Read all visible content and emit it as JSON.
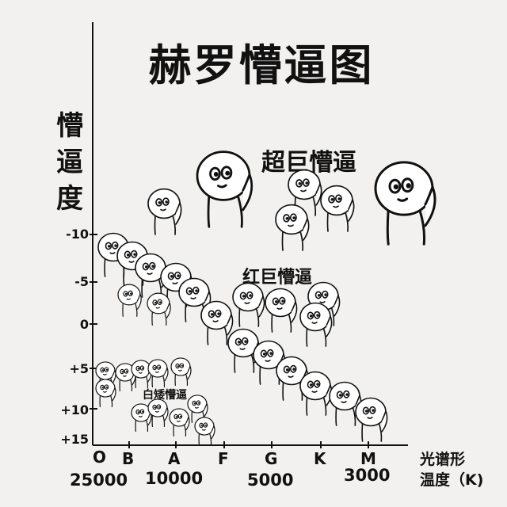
{
  "title": "赫罗懵逼图",
  "y_axis": {
    "label": "懵逼度",
    "ticks": [
      "-10",
      "-5",
      "0",
      "+5",
      "+10",
      "+15"
    ]
  },
  "x_axis": {
    "classes": [
      "O",
      "B",
      "A",
      "F",
      "G",
      "K",
      "M"
    ],
    "temperatures": [
      "25000",
      "10000",
      "5000",
      "3000"
    ],
    "unit_line1": "光谱形",
    "unit_line2": "温度（K)"
  },
  "groups": {
    "supergiants": "超巨懵逼",
    "red_giants": "红巨懵逼",
    "white_dwarfs": "白矮懵逼"
  }
}
